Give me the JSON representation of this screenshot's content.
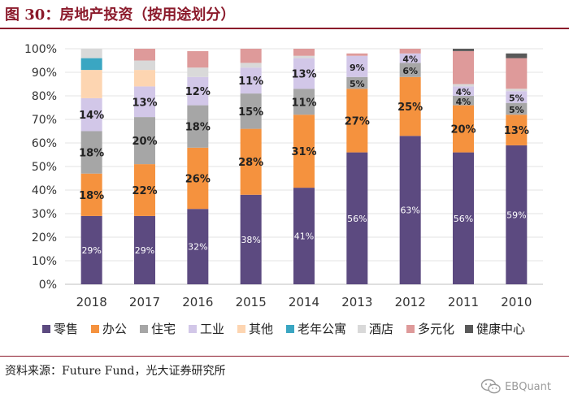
{
  "figure": {
    "title": "图 30：房地产投资（按用途划分）",
    "source": "资料来源：Future Fund，光大证券研究所",
    "watermark": "EBQuant",
    "watermark_icon": "wechat-icon"
  },
  "chart_data": {
    "type": "bar",
    "stacked": true,
    "title": "",
    "xlabel": "",
    "ylabel": "",
    "ylim": [
      0,
      100
    ],
    "ytick_labels": [
      "0%",
      "10%",
      "20%",
      "30%",
      "40%",
      "50%",
      "60%",
      "70%",
      "80%",
      "90%",
      "100%"
    ],
    "legend_position": "bottom",
    "categories": [
      "2018",
      "2017",
      "2016",
      "2015",
      "2014",
      "2013",
      "2012",
      "2011",
      "2010"
    ],
    "series": [
      {
        "name": "零售",
        "color": "#5c4a80",
        "values": [
          29,
          29,
          32,
          38,
          41,
          56,
          63,
          56,
          59
        ],
        "labels": [
          "29%",
          "29%",
          "32%",
          "38%",
          "41%",
          "56%",
          "63%",
          "56%",
          "59%"
        ]
      },
      {
        "name": "办公",
        "color": "#f5923e",
        "values": [
          18,
          22,
          26,
          28,
          31,
          27,
          25,
          20,
          13
        ],
        "labels": [
          "18%",
          "22%",
          "26%",
          "28%",
          "31%",
          "27%",
          "25%",
          "20%",
          "13%"
        ]
      },
      {
        "name": "住宅",
        "color": "#a6a6a6",
        "values": [
          18,
          20,
          18,
          15,
          11,
          5,
          6,
          4,
          5
        ],
        "labels": [
          "18%",
          "20%",
          "18%",
          "15%",
          "11%",
          "5%",
          "6%",
          "4%",
          "5%"
        ]
      },
      {
        "name": "工业",
        "color": "#d2c7e8",
        "values": [
          14,
          13,
          12,
          11,
          13,
          9,
          4,
          4,
          5
        ],
        "labels": [
          "14%",
          "13%",
          "12%",
          "11%",
          "13%",
          "9%",
          "4%",
          "4%",
          "5%"
        ]
      },
      {
        "name": "其他",
        "color": "#fdd5b1",
        "values": [
          12,
          7,
          0,
          0,
          0,
          0,
          0,
          0,
          0
        ],
        "labels": [
          "",
          "",
          "",
          "",
          "",
          "",
          "",
          "",
          ""
        ]
      },
      {
        "name": "老年公寓",
        "color": "#3aa6c2",
        "values": [
          5,
          0,
          0,
          0,
          0,
          0,
          0,
          0,
          0
        ],
        "labels": [
          "",
          "",
          "",
          "",
          "",
          "",
          "",
          "",
          ""
        ]
      },
      {
        "name": "酒店",
        "color": "#d9d9d9",
        "values": [
          4,
          4,
          4,
          2,
          1,
          0,
          0,
          1,
          1
        ],
        "labels": [
          "",
          "",
          "",
          "",
          "",
          "",
          "",
          "",
          ""
        ]
      },
      {
        "name": "多元化",
        "color": "#de9a9a",
        "values": [
          0,
          5,
          7,
          6,
          3,
          1,
          2,
          14,
          13
        ],
        "labels": [
          "",
          "",
          "",
          "",
          "",
          "",
          "",
          "",
          ""
        ]
      },
      {
        "name": "健康中心",
        "color": "#595959",
        "values": [
          0,
          0,
          0,
          0,
          0,
          0,
          0,
          1,
          2
        ],
        "labels": [
          "",
          "",
          "",
          "",
          "",
          "",
          "",
          "",
          ""
        ]
      }
    ]
  }
}
